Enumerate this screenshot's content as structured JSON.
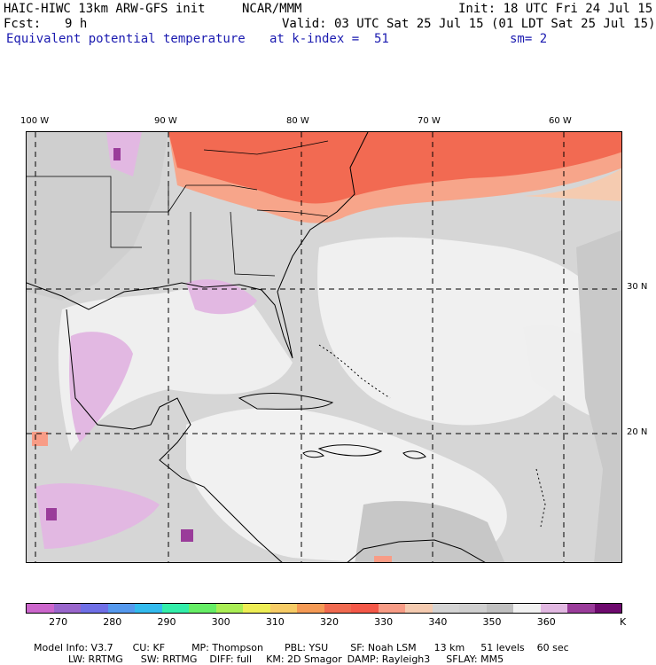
{
  "header": {
    "model": "HAIC-HIWC 13km ARW-GFS init",
    "org": "NCAR/MMM",
    "init": "Init: 18 UTC Fri 24 Jul 15",
    "fcst_label": "Fcst:",
    "fcst_value": "9 h",
    "valid": "Valid: 03 UTC Sat 25 Jul 15 (01 LDT Sat 25 Jul 15)",
    "field": "Equivalent potential temperature",
    "level": "at k-index =  51",
    "smoothing": "sm= 2"
  },
  "map": {
    "lon_labels": [
      "100 W",
      "90 W",
      "80 W",
      "70 W",
      "60 W"
    ],
    "lat_labels": [
      "30 N",
      "20 N"
    ],
    "grid_style": "dashed black lines"
  },
  "colorbar": {
    "colors": [
      "#cc66cc",
      "#9966cc",
      "#6f6fe6",
      "#5599ee",
      "#33bbee",
      "#33eeaa",
      "#66ee66",
      "#aaee55",
      "#eeee55",
      "#f7cc66",
      "#f59a55",
      "#f06a50",
      "#f45848",
      "#f89c86",
      "#f5cbb0",
      "#d4d4d4",
      "#cfcfcf",
      "#c0c0c0",
      "#f2f2f2",
      "#e2b8e2",
      "#9a3c9a",
      "#6e0a6e"
    ],
    "ticks": [
      "270",
      "280",
      "290",
      "300",
      "310",
      "320",
      "330",
      "340",
      "350",
      "360"
    ],
    "unit": "K"
  },
  "footer": {
    "line1": [
      "Model Info: V3.7",
      "CU: KF",
      "MP: Thompson",
      "PBL: YSU",
      "SF: Noah LSM",
      "13 km",
      "51 levels",
      "60 sec"
    ],
    "line2": [
      "LW: RRTMG",
      "SW: RRTMG",
      "DIFF: full",
      "KM: 2D Smagor",
      "DAMP: Rayleigh3",
      "SFLAY: MM5"
    ]
  }
}
